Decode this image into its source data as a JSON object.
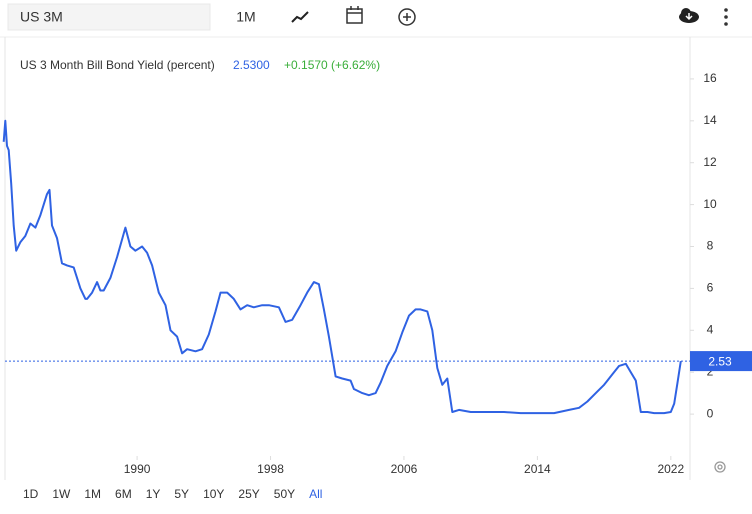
{
  "toolbar": {
    "search": "US 3M",
    "interval": "1M"
  },
  "ranges": [
    "1D",
    "1W",
    "1M",
    "6M",
    "1Y",
    "5Y",
    "10Y",
    "25Y",
    "50Y",
    "All"
  ],
  "chart_data": {
    "type": "line",
    "title": "US 3 Month Bill Bond Yield (percent)",
    "last_value": "2.5300",
    "change": "+0.1570 (+6.62%)",
    "color": "#2f62e3",
    "x": [
      1982.0,
      1982.1,
      1982.2,
      1982.3,
      1982.45,
      1982.6,
      1982.75,
      1983.0,
      1983.3,
      1983.6,
      1983.9,
      1984.2,
      1984.6,
      1984.75,
      1984.9,
      1985.2,
      1985.5,
      1985.8,
      1986.2,
      1986.6,
      1986.9,
      1987.0,
      1987.3,
      1987.6,
      1987.8,
      1988.0,
      1988.4,
      1988.8,
      1989.3,
      1989.6,
      1989.9,
      1990.3,
      1990.6,
      1990.9,
      1991.3,
      1991.7,
      1992.0,
      1992.4,
      1992.7,
      1993.0,
      1993.5,
      1993.9,
      1994.3,
      1994.7,
      1995.0,
      1995.4,
      1995.8,
      1996.2,
      1996.6,
      1997.0,
      1997.5,
      1997.9,
      1998.5,
      1998.9,
      1999.3,
      1999.8,
      2000.2,
      2000.6,
      2000.9,
      2001.2,
      2001.5,
      2001.9,
      2002.3,
      2002.8,
      2003.0,
      2003.5,
      2003.9,
      2004.3,
      2004.6,
      2005.0,
      2005.5,
      2005.9,
      2006.3,
      2006.7,
      2007.0,
      2007.4,
      2007.7,
      2008.0,
      2008.3,
      2008.6,
      2008.9,
      2009.3,
      2010.0,
      2011.0,
      2012.0,
      2013.0,
      2014.0,
      2015.0,
      2015.9,
      2016.5,
      2017.0,
      2017.5,
      2018.0,
      2018.5,
      2018.9,
      2019.3,
      2019.6,
      2019.9,
      2020.2,
      2020.6,
      2021.0,
      2021.6,
      2022.0,
      2022.2,
      2022.4,
      2022.6
    ],
    "values": [
      13.0,
      14.0,
      12.8,
      12.6,
      11.0,
      9.0,
      7.8,
      8.2,
      8.5,
      9.1,
      8.9,
      9.5,
      10.5,
      10.7,
      9.0,
      8.4,
      7.2,
      7.1,
      7.0,
      6.0,
      5.5,
      5.5,
      5.8,
      6.3,
      5.9,
      5.9,
      6.5,
      7.5,
      8.9,
      8.0,
      7.8,
      8.0,
      7.7,
      7.1,
      5.8,
      5.2,
      4.0,
      3.7,
      2.9,
      3.1,
      3.0,
      3.1,
      3.8,
      4.9,
      5.8,
      5.8,
      5.5,
      5.0,
      5.2,
      5.1,
      5.2,
      5.2,
      5.1,
      4.4,
      4.5,
      5.2,
      5.8,
      6.3,
      6.2,
      5.0,
      3.7,
      1.8,
      1.7,
      1.6,
      1.2,
      1.0,
      0.9,
      1.0,
      1.5,
      2.3,
      3.0,
      3.9,
      4.7,
      5.0,
      5.0,
      4.9,
      4.0,
      2.2,
      1.4,
      1.7,
      0.1,
      0.2,
      0.1,
      0.1,
      0.1,
      0.05,
      0.05,
      0.05,
      0.2,
      0.3,
      0.6,
      1.0,
      1.4,
      1.9,
      2.3,
      2.4,
      2.0,
      1.6,
      0.1,
      0.1,
      0.05,
      0.05,
      0.1,
      0.5,
      1.5,
      2.53
    ],
    "xlim": [
      1982.08,
      2023.15
    ],
    "xticks": [
      1990,
      1998,
      2006,
      2014,
      2022
    ],
    "ylim": [
      -2,
      18
    ],
    "yticks": [
      0,
      2,
      4,
      6,
      8,
      10,
      12,
      14,
      16
    ]
  }
}
